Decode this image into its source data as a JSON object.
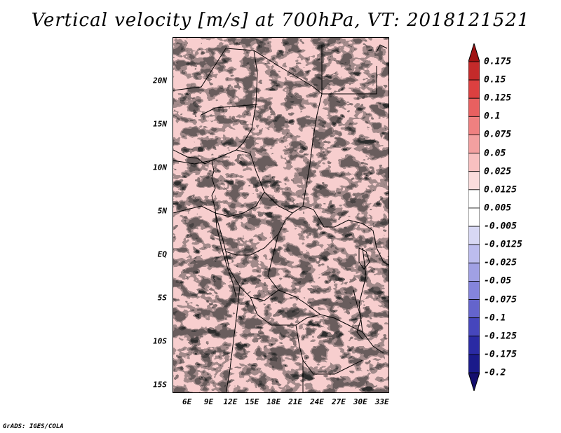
{
  "title": "Vertical velocity [m/s] at 700hPa, VT: 2018121521",
  "footer": "GrADS: IGES/COLA",
  "map": {
    "lon_range": [
      4,
      34
    ],
    "lat_range": [
      -16,
      25
    ],
    "lat_ticks": [
      {
        "label": "20N",
        "value": 20
      },
      {
        "label": "15N",
        "value": 15
      },
      {
        "label": "10N",
        "value": 10
      },
      {
        "label": "5N",
        "value": 5
      },
      {
        "label": "EQ",
        "value": 0
      },
      {
        "label": "5S",
        "value": -5
      },
      {
        "label": "10S",
        "value": -10
      },
      {
        "label": "15S",
        "value": -15
      }
    ],
    "lon_ticks": [
      {
        "label": "6E",
        "value": 6
      },
      {
        "label": "9E",
        "value": 9
      },
      {
        "label": "12E",
        "value": 12
      },
      {
        "label": "15E",
        "value": 15
      },
      {
        "label": "18E",
        "value": 18
      },
      {
        "label": "21E",
        "value": 21
      },
      {
        "label": "24E",
        "value": 24
      },
      {
        "label": "27E",
        "value": 27
      },
      {
        "label": "30E",
        "value": 30
      },
      {
        "label": "33E",
        "value": 33
      }
    ]
  },
  "colorbar": {
    "levels": [
      "0.175",
      "0.15",
      "0.125",
      "0.1",
      "0.075",
      "0.05",
      "0.025",
      "0.0125",
      "0.005",
      "-0.005",
      "-0.0125",
      "-0.025",
      "-0.05",
      "-0.075",
      "-0.1",
      "-0.125",
      "-0.175",
      "-0.2"
    ],
    "colors": [
      "#a01212",
      "#c42a2a",
      "#dc4040",
      "#e86060",
      "#ef8080",
      "#f3a0a0",
      "#f8c0c0",
      "#fbdcdc",
      "#ffffff",
      "#ffffff",
      "#d8d8f4",
      "#bcbcee",
      "#a0a0e4",
      "#8484dc",
      "#6464cc",
      "#4646bc",
      "#2a2aa4",
      "#1a1a8a",
      "#140e6e"
    ]
  }
}
